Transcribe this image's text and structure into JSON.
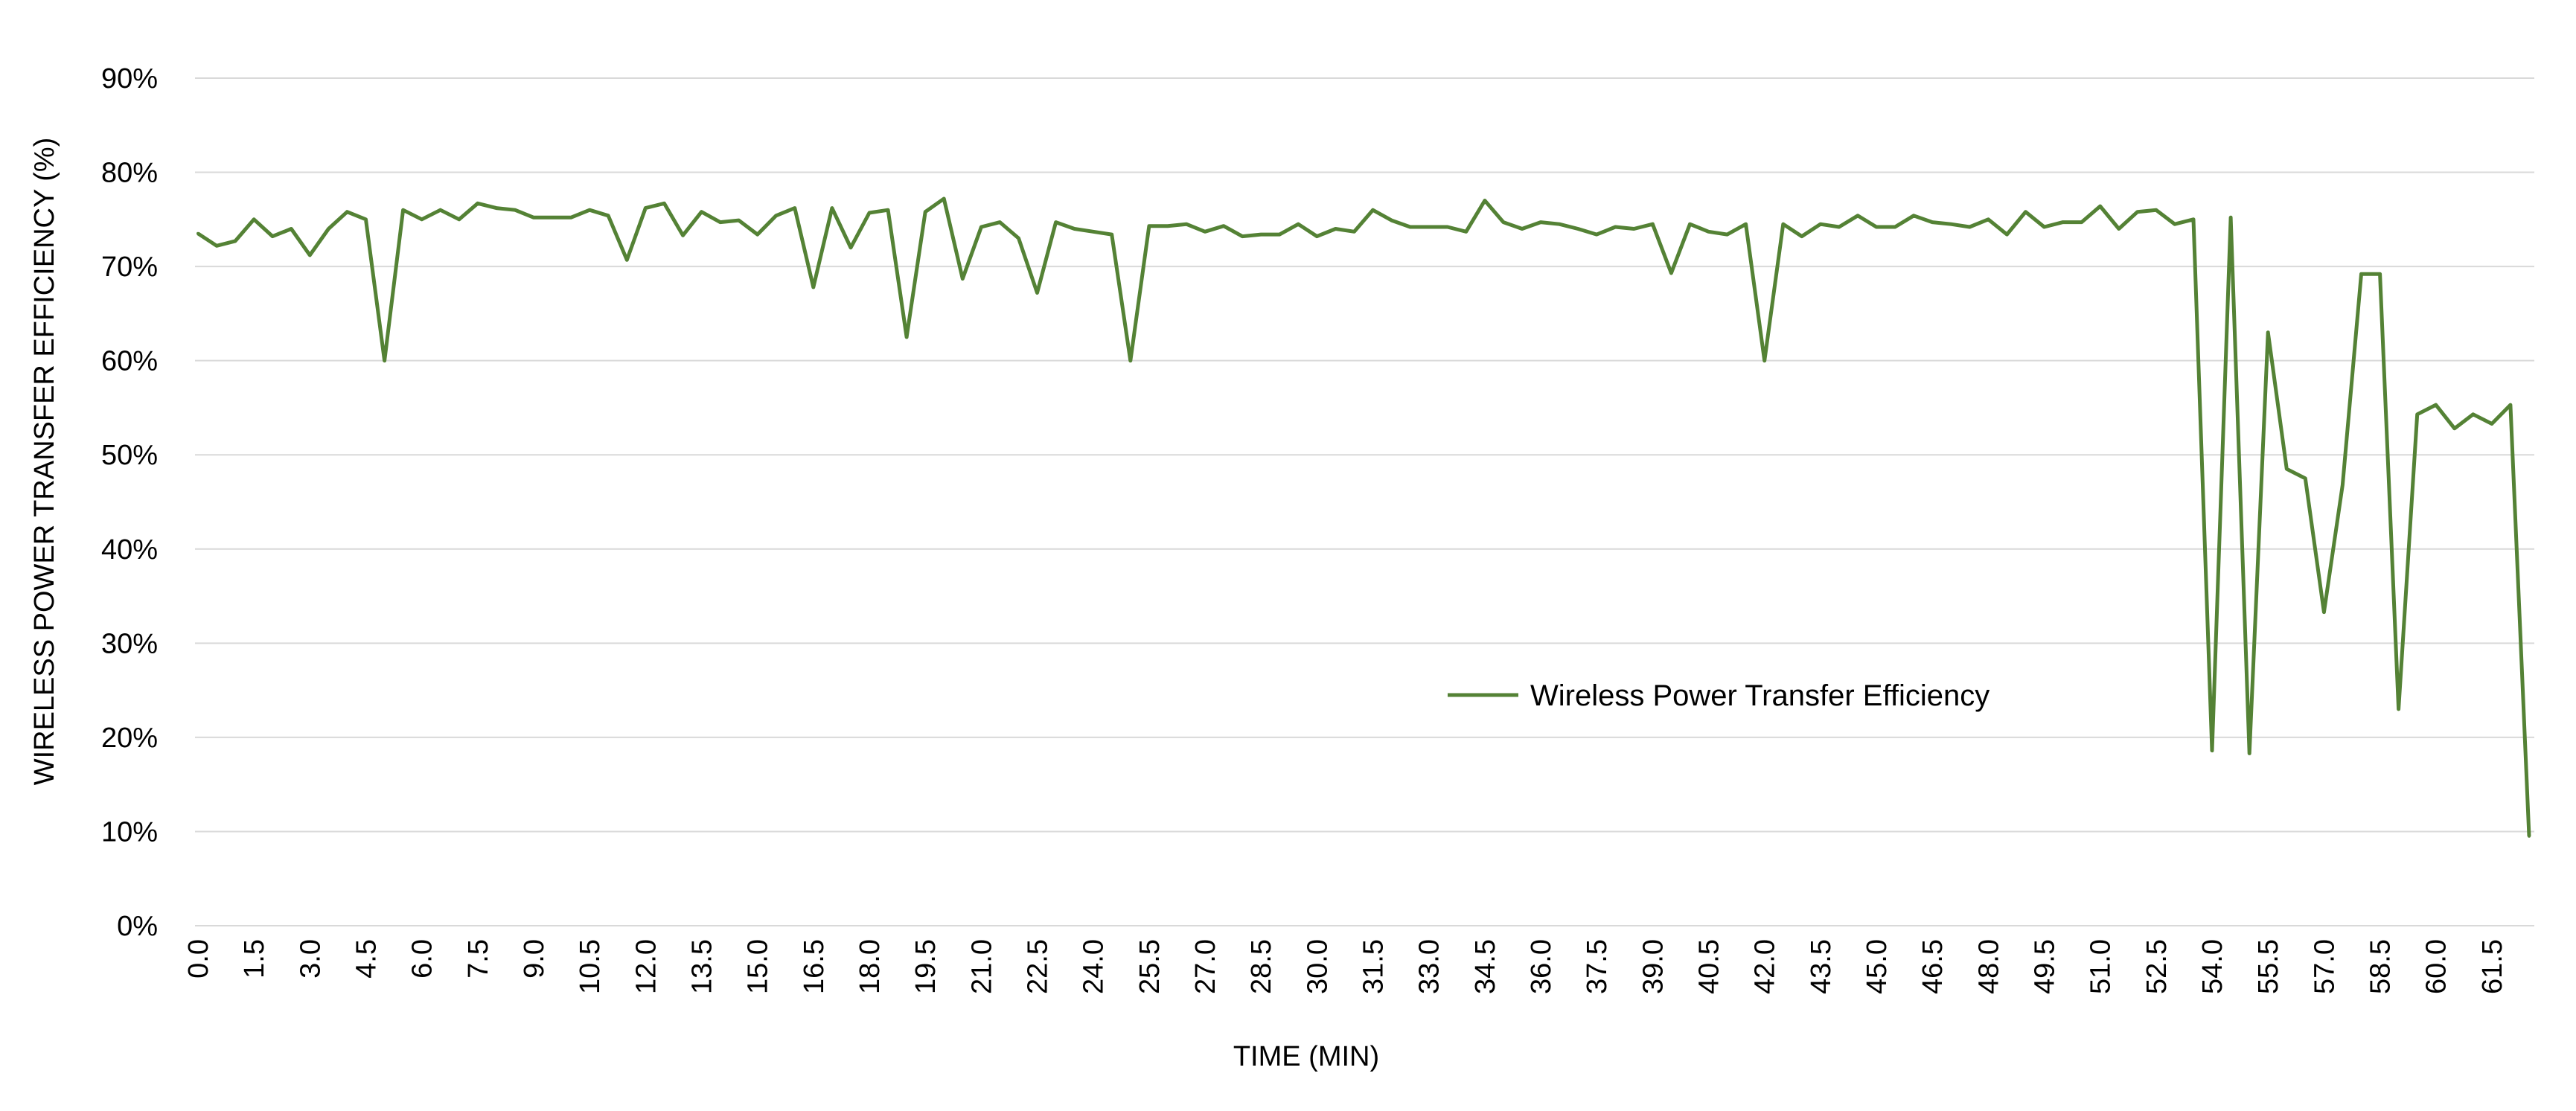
{
  "chart_data": {
    "type": "line",
    "xlabel": "TIME (MIN)",
    "ylabel": "WIRELESS POWER TRANSFER EFFICIENCY (%)",
    "ylim": [
      0,
      90
    ],
    "y_tick_labels": [
      "0%",
      "10%",
      "20%",
      "30%",
      "40%",
      "50%",
      "60%",
      "70%",
      "80%",
      "90%"
    ],
    "y_ticks": [
      0,
      10,
      20,
      30,
      40,
      50,
      60,
      70,
      80,
      90
    ],
    "x_step": 0.5,
    "x_tick_labels": [
      "0.0",
      "1.5",
      "3.0",
      "4.5",
      "6.0",
      "7.5",
      "9.0",
      "10.5",
      "12.0",
      "13.5",
      "15.0",
      "16.5",
      "18.0",
      "19.5",
      "21.0",
      "22.5",
      "24.0",
      "25.5",
      "27.0",
      "28.5",
      "30.0",
      "31.5",
      "33.0",
      "34.5",
      "36.0",
      "37.5",
      "39.0",
      "40.5",
      "42.0",
      "43.5",
      "45.0",
      "46.5",
      "48.0",
      "49.5",
      "51.0",
      "52.5",
      "54.0",
      "55.5",
      "57.0",
      "58.5",
      "60.0",
      "61.5"
    ],
    "grid": "horizontal",
    "legend_position": "center-right",
    "line_color": "#548235",
    "series": [
      {
        "name": "Wireless Power Transfer Efficiency",
        "values": [
          73.5,
          72.2,
          72.7,
          75.0,
          73.2,
          74.0,
          71.2,
          74.0,
          75.8,
          75.0,
          60.0,
          76.0,
          75.0,
          76.0,
          75.0,
          76.7,
          76.2,
          76.0,
          75.2,
          75.2,
          75.2,
          76.0,
          75.4,
          70.7,
          76.2,
          76.7,
          73.3,
          75.8,
          74.7,
          74.9,
          73.4,
          75.4,
          76.2,
          67.8,
          76.2,
          72.0,
          75.7,
          76.0,
          62.5,
          75.8,
          77.2,
          68.7,
          74.2,
          74.7,
          73.0,
          67.2,
          74.7,
          74.0,
          73.7,
          73.4,
          60.0,
          74.3,
          74.3,
          74.5,
          73.7,
          74.3,
          73.2,
          73.4,
          73.4,
          74.5,
          73.2,
          74.0,
          73.7,
          76.0,
          74.9,
          74.2,
          74.2,
          74.2,
          73.7,
          77.0,
          74.7,
          74.0,
          74.7,
          74.5,
          74.0,
          73.4,
          74.2,
          74.0,
          74.5,
          69.3,
          74.5,
          73.7,
          73.4,
          74.5,
          60.0,
          74.5,
          73.2,
          74.5,
          74.2,
          75.4,
          74.2,
          74.2,
          75.4,
          74.7,
          74.5,
          74.2,
          75.0,
          73.4,
          75.8,
          74.2,
          74.7,
          74.7,
          76.4,
          74.0,
          75.8,
          76.0,
          74.5,
          75.0,
          18.6,
          75.2,
          18.3,
          63.0,
          48.5,
          47.5,
          33.3,
          46.8,
          69.2,
          69.2,
          23.0,
          54.3,
          55.3,
          52.8,
          54.3,
          53.3,
          55.3,
          9.5
        ]
      }
    ]
  }
}
